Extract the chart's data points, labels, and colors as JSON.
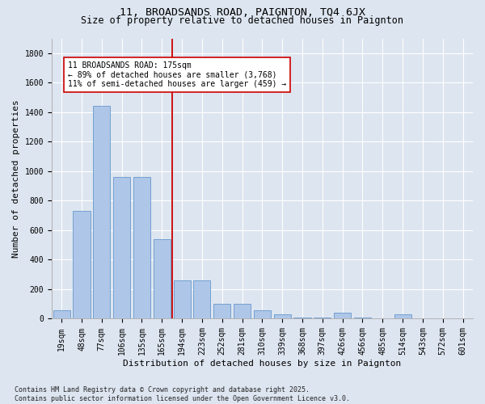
{
  "title1": "11, BROADSANDS ROAD, PAIGNTON, TQ4 6JX",
  "title2": "Size of property relative to detached houses in Paignton",
  "xlabel": "Distribution of detached houses by size in Paignton",
  "ylabel": "Number of detached properties",
  "categories": [
    "19sqm",
    "48sqm",
    "77sqm",
    "106sqm",
    "135sqm",
    "165sqm",
    "194sqm",
    "223sqm",
    "252sqm",
    "281sqm",
    "310sqm",
    "339sqm",
    "368sqm",
    "397sqm",
    "426sqm",
    "456sqm",
    "485sqm",
    "514sqm",
    "543sqm",
    "572sqm",
    "601sqm"
  ],
  "values": [
    55,
    730,
    1445,
    960,
    960,
    540,
    260,
    260,
    100,
    100,
    55,
    30,
    10,
    10,
    40,
    10,
    5,
    28,
    5,
    3,
    3
  ],
  "bar_color": "#aec6e8",
  "bar_edge_color": "#6699cc",
  "vline_color": "#cc0000",
  "annotation_text": "11 BROADSANDS ROAD: 175sqm\n← 89% of detached houses are smaller (3,768)\n11% of semi-detached houses are larger (459) →",
  "annotation_box_color": "#ffffff",
  "annotation_box_edge": "#cc0000",
  "ylim": [
    0,
    1900
  ],
  "yticks": [
    0,
    200,
    400,
    600,
    800,
    1000,
    1200,
    1400,
    1600,
    1800
  ],
  "footnote": "Contains HM Land Registry data © Crown copyright and database right 2025.\nContains public sector information licensed under the Open Government Licence v3.0.",
  "bg_color": "#dde5f0",
  "plot_bg_color": "#dde5f0",
  "grid_color": "#ffffff",
  "title_fontsize": 9.5,
  "subtitle_fontsize": 8.5,
  "tick_fontsize": 7,
  "axis_label_fontsize": 8,
  "footnote_fontsize": 6,
  "annot_fontsize": 7
}
